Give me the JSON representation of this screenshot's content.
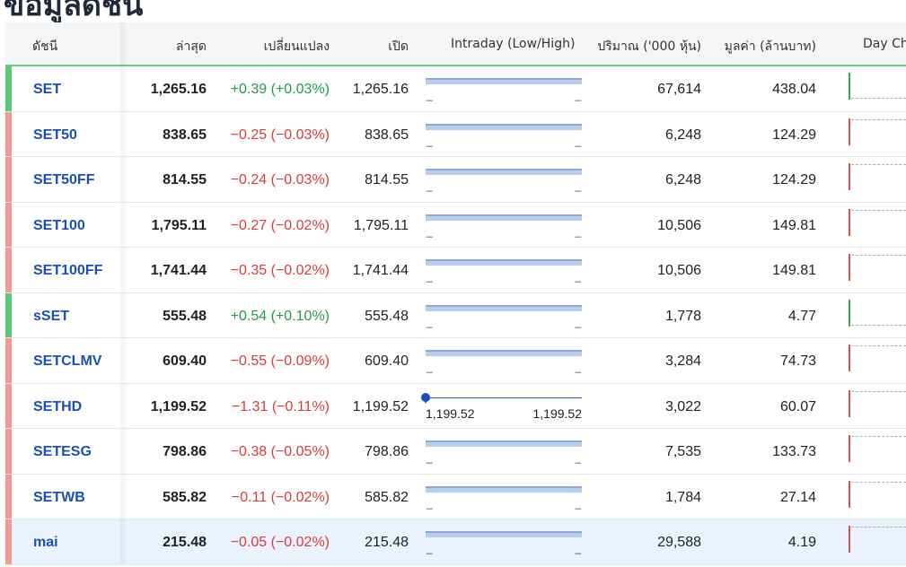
{
  "page": {
    "title": "ข้อมูลดัชนี"
  },
  "columns": {
    "index": "ดัชนี",
    "last": "ล่าสุด",
    "change": "เปลี่ยนแปลง",
    "open": "เปิด",
    "intraday": "Intraday (Low/High)",
    "volume": "ปริมาณ ('000 หุ้น)",
    "value": "มูลค่า (ล้านบาท)",
    "daychart": "Day Cha"
  },
  "colors": {
    "up": "#1f9d4d",
    "down": "#d93c3c",
    "link": "#1b4fb8",
    "accent_up": "#5cc97a",
    "accent_down": "#f29a9a"
  },
  "rows": [
    {
      "name": "SET",
      "last": "1,265.16",
      "change": "+0.39 (+0.03%)",
      "dir": "up",
      "open": "1,265.16",
      "intraday": "bar",
      "low": "-",
      "high": "-",
      "volume": "67,614",
      "value": "438.04",
      "highlight": false
    },
    {
      "name": "SET50",
      "last": "838.65",
      "change": "-0.25 (-0.03%)",
      "dir": "down",
      "open": "838.65",
      "intraday": "bar",
      "low": "-",
      "high": "-",
      "volume": "6,248",
      "value": "124.29",
      "highlight": false
    },
    {
      "name": "SET50FF",
      "last": "814.55",
      "change": "-0.24 (-0.03%)",
      "dir": "down",
      "open": "814.55",
      "intraday": "bar",
      "low": "-",
      "high": "-",
      "volume": "6,248",
      "value": "124.29",
      "highlight": false
    },
    {
      "name": "SET100",
      "last": "1,795.11",
      "change": "-0.27 (-0.02%)",
      "dir": "down",
      "open": "1,795.11",
      "intraday": "bar",
      "low": "-",
      "high": "-",
      "volume": "10,506",
      "value": "149.81",
      "highlight": false
    },
    {
      "name": "SET100FF",
      "last": "1,741.44",
      "change": "-0.35 (-0.02%)",
      "dir": "down",
      "open": "1,741.44",
      "intraday": "bar",
      "low": "-",
      "high": "-",
      "volume": "10,506",
      "value": "149.81",
      "highlight": false
    },
    {
      "name": "sSET",
      "last": "555.48",
      "change": "+0.54 (+0.10%)",
      "dir": "up",
      "open": "555.48",
      "intraday": "bar",
      "low": "-",
      "high": "-",
      "volume": "1,778",
      "value": "4.77",
      "highlight": false
    },
    {
      "name": "SETCLMV",
      "last": "609.40",
      "change": "-0.55 (-0.09%)",
      "dir": "down",
      "open": "609.40",
      "intraday": "bar",
      "low": "-",
      "high": "-",
      "volume": "3,284",
      "value": "74.73",
      "highlight": false
    },
    {
      "name": "SETHD",
      "last": "1,199.52",
      "change": "-1.31 (-0.11%)",
      "dir": "down",
      "open": "1,199.52",
      "intraday": "marker",
      "low": "1,199.52",
      "high": "1,199.52",
      "volume": "3,022",
      "value": "60.07",
      "highlight": false
    },
    {
      "name": "SETESG",
      "last": "798.86",
      "change": "-0.38 (-0.05%)",
      "dir": "down",
      "open": "798.86",
      "intraday": "bar",
      "low": "-",
      "high": "-",
      "volume": "7,535",
      "value": "133.73",
      "highlight": false
    },
    {
      "name": "SETWB",
      "last": "585.82",
      "change": "-0.11 (-0.02%)",
      "dir": "down",
      "open": "585.82",
      "intraday": "bar",
      "low": "-",
      "high": "-",
      "volume": "1,784",
      "value": "27.14",
      "highlight": false
    },
    {
      "name": "mai",
      "last": "215.48",
      "change": "-0.05 (-0.02%)",
      "dir": "down",
      "open": "215.48",
      "intraday": "bar",
      "low": "-",
      "high": "-",
      "volume": "29,588",
      "value": "4.19",
      "highlight": true
    }
  ]
}
